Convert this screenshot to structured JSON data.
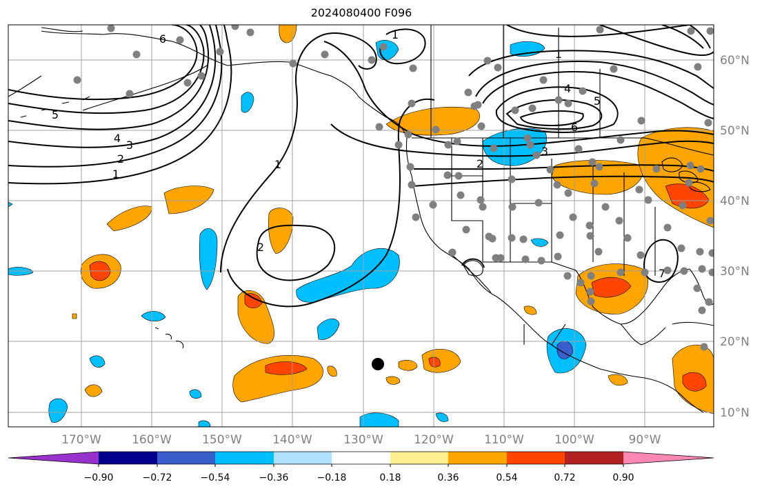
{
  "title": "2024080400 F096",
  "map": {
    "lat_labels": [
      "60°N",
      "50°N",
      "40°N",
      "30°N",
      "20°N",
      "10°N"
    ],
    "lon_labels": [
      "170°W",
      "160°W",
      "150°W",
      "140°W",
      "130°W",
      "120°W",
      "110°W",
      "100°W",
      "90°W"
    ],
    "contour_labels": [
      "1",
      "2",
      "3",
      "4",
      "5",
      "6",
      "7",
      "1",
      "2",
      "3",
      "4",
      "5",
      "6",
      "1",
      "2",
      "1"
    ],
    "colors": {
      "land_outline": "#000000",
      "grid": "#a0a0a0",
      "stations": "#808080",
      "contours": "#000000"
    }
  },
  "colorbar": {
    "tick_labels": [
      "−0.90",
      "−0.72",
      "−0.54",
      "−0.36",
      "−0.18",
      "0.18",
      "0.36",
      "0.54",
      "0.72",
      "0.90"
    ],
    "colors": [
      "#9932cc",
      "#00008b",
      "#3a5fcd",
      "#00bfff",
      "#b0e2ff",
      "#ffffff",
      "#fff08f",
      "#ffa500",
      "#ff4500",
      "#b22222",
      "#ff87b4"
    ]
  }
}
